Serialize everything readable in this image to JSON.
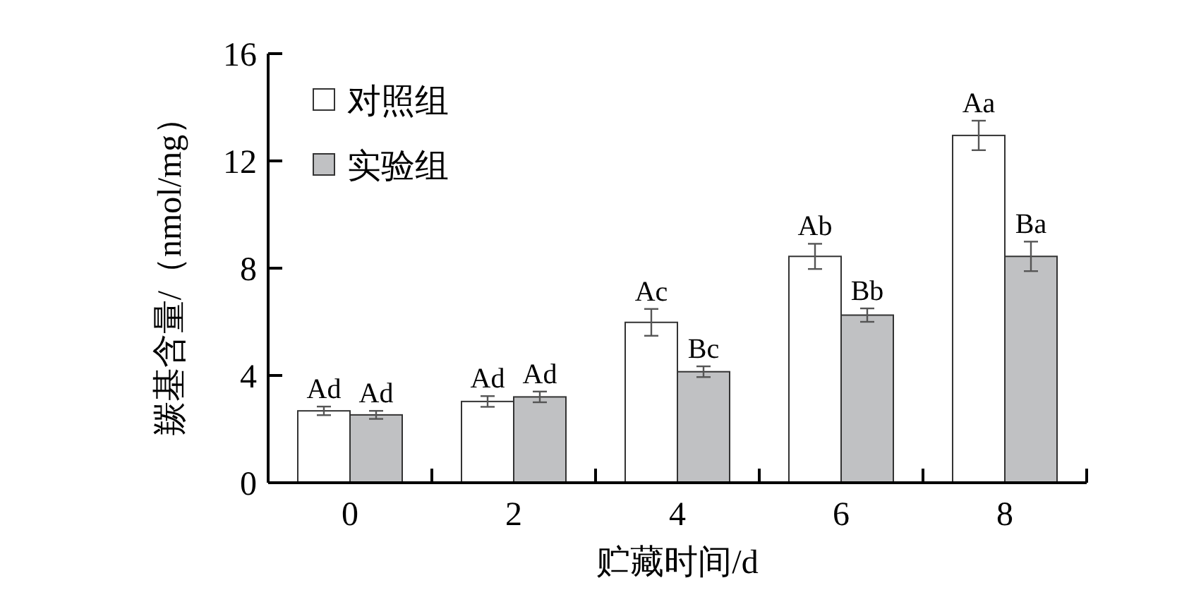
{
  "chart_data": {
    "type": "bar",
    "xlabel": "贮藏时间/d",
    "ylabel": "羰基含量/（nmol/mg）",
    "categories": [
      "0",
      "2",
      "4",
      "6",
      "8"
    ],
    "series": [
      {
        "name": "对照组",
        "color": "#ffffff",
        "values": [
          2.68,
          3.03,
          5.98,
          8.44,
          12.95
        ],
        "errors": [
          0.16,
          0.2,
          0.5,
          0.47,
          0.55
        ],
        "value_labels": [
          "Ad",
          "Ad",
          "Ac",
          "Ab",
          "Aa"
        ]
      },
      {
        "name": "实验组",
        "color": "#c0c1c3",
        "values": [
          2.53,
          3.2,
          4.14,
          6.25,
          8.44
        ],
        "errors": [
          0.15,
          0.2,
          0.2,
          0.25,
          0.55
        ],
        "value_labels": [
          "Ad",
          "Ad",
          "Bc",
          "Bb",
          "Ba"
        ]
      }
    ],
    "ylim": [
      0,
      16
    ],
    "yticks": [
      0,
      4,
      8,
      12,
      16
    ],
    "legend": "top left"
  }
}
